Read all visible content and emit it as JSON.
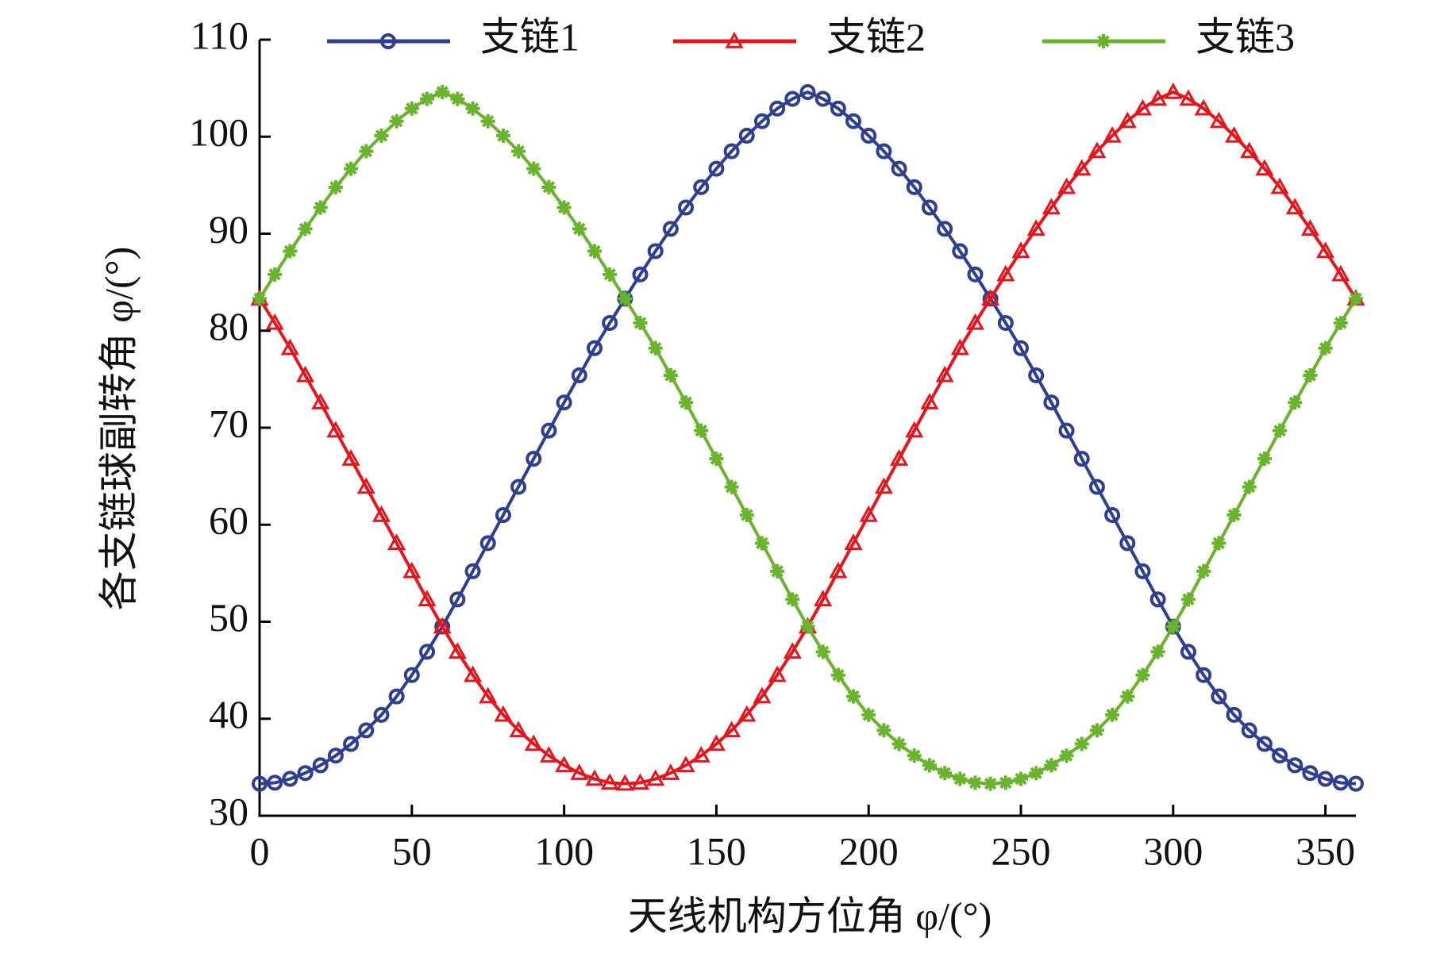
{
  "chart_data": {
    "type": "line",
    "x_label": "天线机构方位角 φ/(°)",
    "y_label": "各支链球副转角 φ/(°)",
    "x": [
      0,
      5,
      10,
      15,
      20,
      25,
      30,
      35,
      40,
      45,
      50,
      55,
      60,
      65,
      70,
      75,
      80,
      85,
      90,
      95,
      100,
      105,
      110,
      115,
      120,
      125,
      130,
      135,
      140,
      145,
      150,
      155,
      160,
      165,
      170,
      175,
      180,
      185,
      190,
      195,
      200,
      205,
      210,
      215,
      220,
      225,
      230,
      235,
      240,
      245,
      250,
      255,
      260,
      265,
      270,
      275,
      280,
      285,
      290,
      295,
      300,
      305,
      310,
      315,
      320,
      325,
      330,
      335,
      340,
      345,
      350,
      355,
      360
    ],
    "series": [
      {
        "name": "支链1",
        "color": "#2e3f92",
        "marker": "circle",
        "values": [
          33.3,
          33.4,
          33.8,
          34.4,
          35.2,
          36.2,
          37.4,
          38.8,
          40.4,
          42.3,
          44.5,
          46.9,
          49.5,
          52.3,
          55.2,
          58.1,
          61.0,
          63.9,
          66.8,
          69.7,
          72.6,
          75.4,
          78.2,
          80.8,
          83.3,
          85.8,
          88.2,
          90.5,
          92.7,
          94.8,
          96.7,
          98.5,
          100.1,
          101.6,
          102.9,
          103.9,
          104.6,
          103.9,
          102.9,
          101.6,
          100.1,
          98.5,
          96.7,
          94.8,
          92.7,
          90.5,
          88.2,
          85.8,
          83.3,
          80.8,
          78.2,
          75.4,
          72.6,
          69.7,
          66.8,
          63.9,
          61.0,
          58.1,
          55.2,
          52.3,
          49.5,
          46.9,
          44.5,
          42.3,
          40.4,
          38.8,
          37.4,
          36.2,
          35.2,
          34.4,
          33.8,
          33.4,
          33.3
        ]
      },
      {
        "name": "支链2",
        "color": "#e8141c",
        "marker": "triangle",
        "values": [
          83.3,
          80.8,
          78.2,
          75.4,
          72.6,
          69.7,
          66.8,
          63.9,
          61.0,
          58.1,
          55.2,
          52.3,
          49.5,
          46.9,
          44.5,
          42.3,
          40.4,
          38.8,
          37.4,
          36.2,
          35.2,
          34.4,
          33.8,
          33.4,
          33.3,
          33.4,
          33.8,
          34.4,
          35.2,
          36.2,
          37.4,
          38.8,
          40.4,
          42.3,
          44.5,
          46.9,
          49.5,
          52.3,
          55.2,
          58.1,
          61.0,
          63.9,
          66.8,
          69.7,
          72.6,
          75.4,
          78.2,
          80.8,
          83.3,
          85.8,
          88.2,
          90.5,
          92.7,
          94.8,
          96.7,
          98.5,
          100.1,
          101.6,
          102.9,
          103.9,
          104.6,
          103.9,
          102.9,
          101.6,
          100.1,
          98.5,
          96.7,
          94.8,
          92.7,
          90.5,
          88.2,
          85.8,
          83.3
        ]
      },
      {
        "name": "支链3",
        "color": "#6ab42d",
        "marker": "star",
        "values": [
          83.3,
          85.8,
          88.2,
          90.5,
          92.7,
          94.8,
          96.7,
          98.5,
          100.1,
          101.6,
          102.9,
          103.9,
          104.6,
          103.9,
          102.9,
          101.6,
          100.1,
          98.5,
          96.7,
          94.8,
          92.7,
          90.5,
          88.2,
          85.8,
          83.3,
          80.8,
          78.2,
          75.4,
          72.6,
          69.7,
          66.8,
          63.9,
          61.0,
          58.1,
          55.2,
          52.3,
          49.5,
          46.9,
          44.5,
          42.3,
          40.4,
          38.8,
          37.4,
          36.2,
          35.2,
          34.4,
          33.8,
          33.4,
          33.3,
          33.4,
          33.8,
          34.4,
          35.2,
          36.2,
          37.4,
          38.8,
          40.4,
          42.3,
          44.5,
          46.9,
          49.5,
          52.3,
          55.2,
          58.1,
          61.0,
          63.9,
          66.8,
          69.7,
          72.6,
          75.4,
          78.2,
          80.8,
          83.3
        ]
      }
    ],
    "xlim": [
      0,
      360
    ],
    "xticks": [
      0,
      50,
      100,
      150,
      200,
      250,
      300,
      350
    ],
    "ylim": [
      30,
      110
    ],
    "yticks": [
      30,
      40,
      50,
      60,
      70,
      80,
      90,
      100,
      110
    ],
    "grid": false,
    "legend": "top"
  }
}
